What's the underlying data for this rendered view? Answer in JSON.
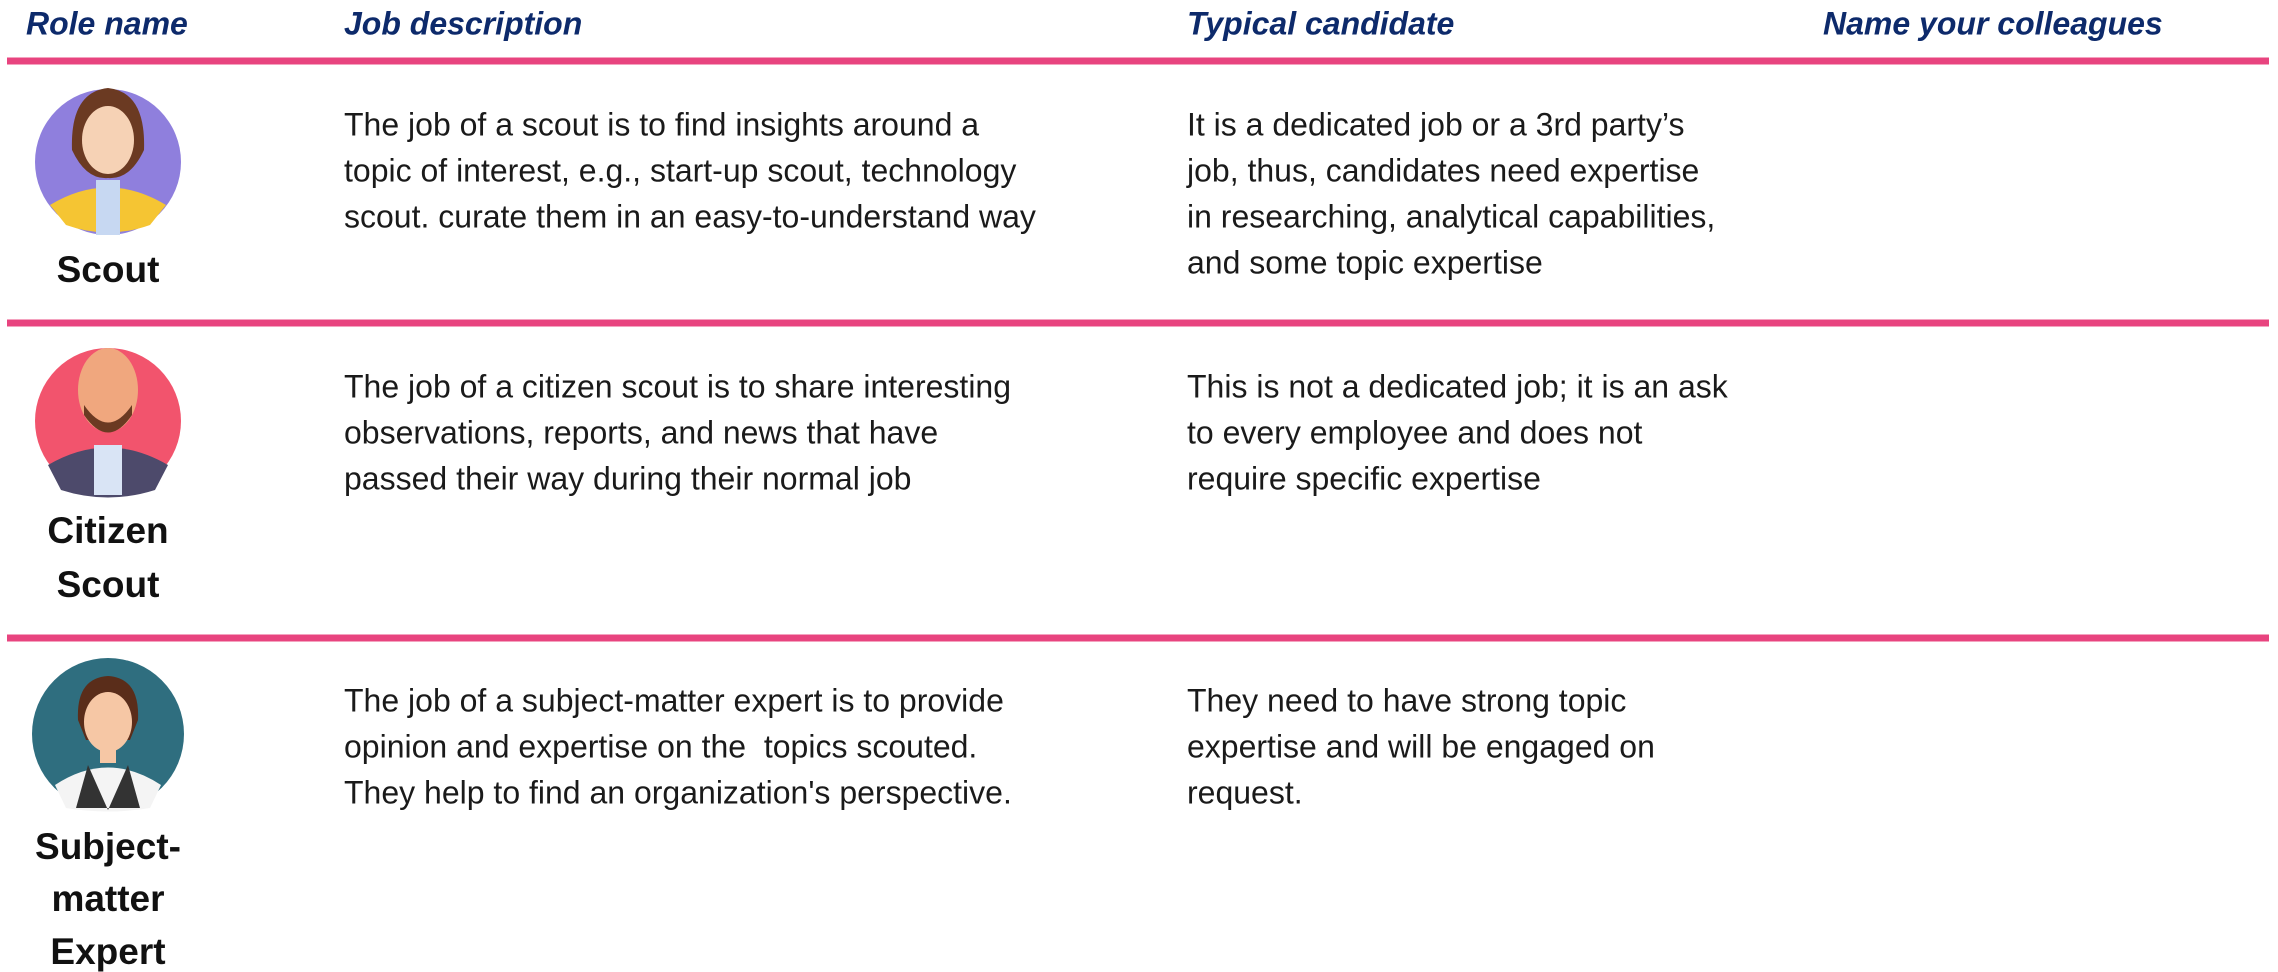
{
  "header": {
    "columns": [
      "Role name",
      "Job description",
      "Typical candidate",
      "Name your colleagues"
    ]
  },
  "rows": [
    {
      "role": [
        "Scout"
      ],
      "description": [
        "The job of a scout is to find insights around a",
        "topic of interest, e.g., start-up scout, technology",
        "scout. curate them in an easy-to-understand way"
      ],
      "candidate": [
        "It is a dedicated job or a 3rd party’s",
        "job, thus, candidates need expertise",
        "in researching, analytical capabilities,",
        "and some topic expertise"
      ]
    },
    {
      "role": [
        "Citizen",
        "Scout"
      ],
      "description": [
        "The job of a citizen scout is to share interesting",
        "observations, reports, and news that have",
        "passed their way during their normal job"
      ],
      "candidate": [
        "This is not a dedicated job; it is an ask",
        "to every employee and does not",
        "require specific expertise"
      ]
    },
    {
      "role": [
        "Subject-",
        "matter",
        "Expert"
      ],
      "description": [
        "The job of a subject-matter expert is to provide",
        "opinion and expertise on the  topics scouted.",
        "They help to find an organization's perspective."
      ],
      "candidate": [
        "They need to have strong topic",
        "expertise and will be engaged on",
        "request."
      ]
    }
  ]
}
